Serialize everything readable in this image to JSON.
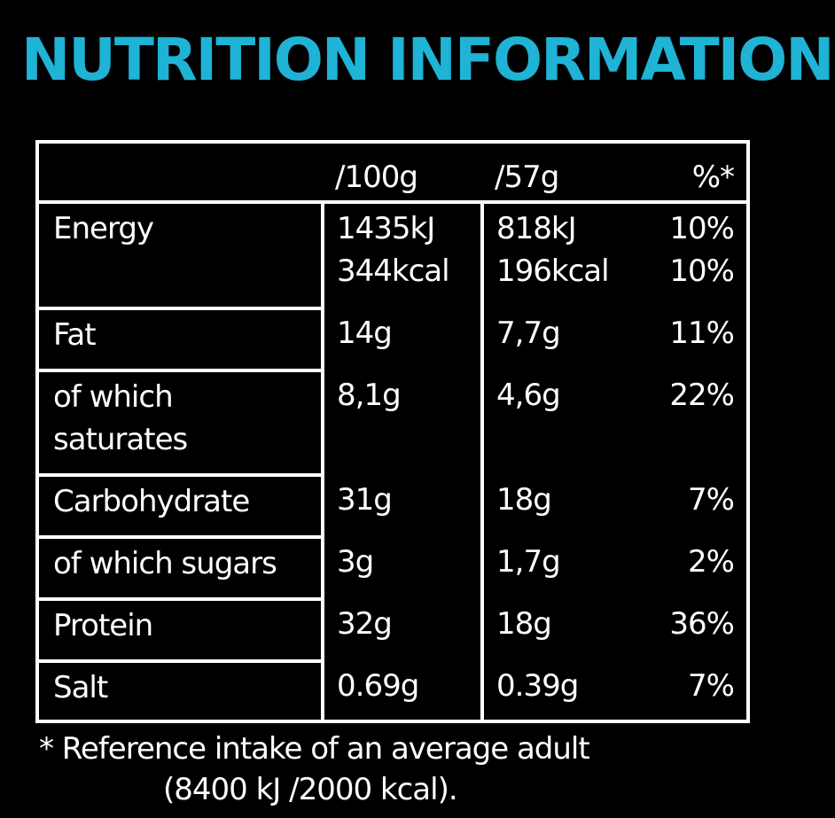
{
  "title": "NUTRITION INFORMATION",
  "colors": {
    "title": "#1fb3d6",
    "text": "#ffffff",
    "background": "#000000",
    "border": "#ffffff"
  },
  "table": {
    "headers": {
      "label": "",
      "per100g": "/100g",
      "per57g": "/57g",
      "ri": "%*"
    },
    "rows": [
      {
        "label": "Energy",
        "per100g": [
          "1435kJ",
          "344kcal"
        ],
        "per57g": [
          "818kJ",
          "196kcal"
        ],
        "ri": [
          "10%",
          "10%"
        ]
      },
      {
        "label": "Fat",
        "per100g": [
          "14g"
        ],
        "per57g": [
          "7,7g"
        ],
        "ri": [
          "11%"
        ]
      },
      {
        "label": "of which saturates",
        "label_lines": [
          "of which",
          "saturates"
        ],
        "per100g": [
          "8,1g"
        ],
        "per57g": [
          "4,6g"
        ],
        "ri": [
          "22%"
        ]
      },
      {
        "label": "Carbohydrate",
        "per100g": [
          "31g"
        ],
        "per57g": [
          "18g"
        ],
        "ri": [
          "7%"
        ]
      },
      {
        "label": "of which sugars",
        "per100g": [
          "3g"
        ],
        "per57g": [
          "1,7g"
        ],
        "ri": [
          "2%"
        ]
      },
      {
        "label": "Protein",
        "per100g": [
          "32g"
        ],
        "per57g": [
          "18g"
        ],
        "ri": [
          "36%"
        ]
      },
      {
        "label": "Salt",
        "per100g": [
          "0.69g"
        ],
        "per57g": [
          "0.39g"
        ],
        "ri": [
          "7%"
        ]
      }
    ]
  },
  "footnote": {
    "line1": "* Reference intake of an average adult",
    "line2": "(8400 kJ /2000 kcal)."
  }
}
